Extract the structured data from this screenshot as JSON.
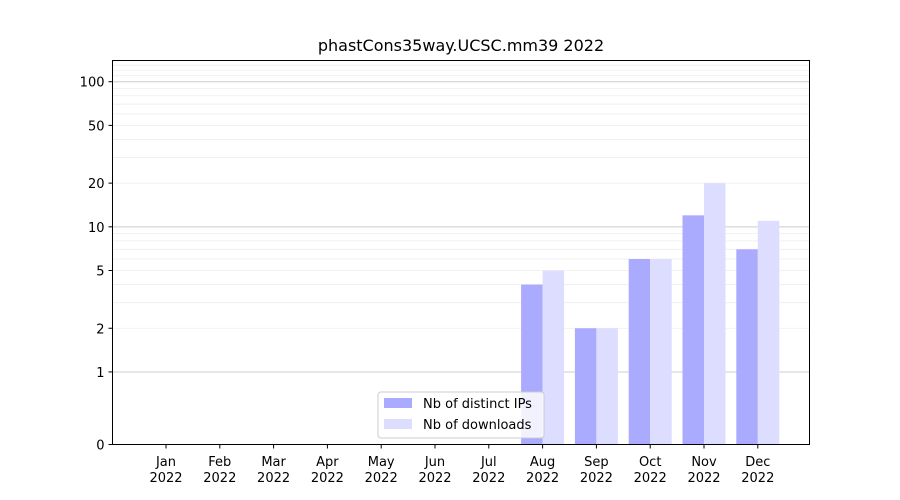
{
  "chart_data": {
    "type": "bar",
    "title": "phastCons35way.UCSC.mm39 2022",
    "xlabel": "",
    "ylabel": "",
    "y_scale": "symlog",
    "ylim": [
      0,
      140
    ],
    "grid": "horizontal",
    "legend_position": "bottom-center",
    "yticks": [
      {
        "value": 0,
        "label": "0"
      },
      {
        "value": 1,
        "label": "1"
      },
      {
        "value": 2,
        "label": "2"
      },
      {
        "value": 5,
        "label": "5"
      },
      {
        "value": 10,
        "label": "10"
      },
      {
        "value": 20,
        "label": "20"
      },
      {
        "value": 50,
        "label": "50"
      },
      {
        "value": 100,
        "label": "100"
      }
    ],
    "categories": [
      {
        "month": "Jan",
        "year": "2022"
      },
      {
        "month": "Feb",
        "year": "2022"
      },
      {
        "month": "Mar",
        "year": "2022"
      },
      {
        "month": "Apr",
        "year": "2022"
      },
      {
        "month": "May",
        "year": "2022"
      },
      {
        "month": "Jun",
        "year": "2022"
      },
      {
        "month": "Jul",
        "year": "2022"
      },
      {
        "month": "Aug",
        "year": "2022"
      },
      {
        "month": "Sep",
        "year": "2022"
      },
      {
        "month": "Oct",
        "year": "2022"
      },
      {
        "month": "Nov",
        "year": "2022"
      },
      {
        "month": "Dec",
        "year": "2022"
      }
    ],
    "series": [
      {
        "name": "Nb of distinct IPs",
        "color": "#aaaaff",
        "values": [
          0,
          0,
          0,
          0,
          0,
          0,
          0,
          4,
          2,
          6,
          12,
          7
        ]
      },
      {
        "name": "Nb of downloads",
        "color": "#ddddff",
        "values": [
          0,
          0,
          0,
          0,
          0,
          0,
          0,
          5,
          2,
          6,
          20,
          11
        ]
      }
    ]
  }
}
